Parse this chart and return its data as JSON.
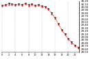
{
  "pressure_values": [
    30.05,
    30.08,
    30.12,
    30.1,
    30.08,
    30.11,
    30.09,
    30.13,
    30.07,
    30.1,
    30.06,
    30.09,
    30.04,
    30.02,
    29.95,
    29.8,
    29.65,
    29.45,
    29.25,
    29.1,
    28.95,
    28.82,
    28.72,
    28.65
  ],
  "red_values": [
    30.03,
    30.06,
    30.09,
    30.07,
    30.05,
    30.08,
    30.06,
    30.1,
    30.04,
    30.07,
    30.03,
    30.06,
    30.01,
    29.99,
    29.92,
    29.77,
    29.62,
    29.42,
    29.22,
    29.07,
    28.92,
    28.79,
    28.69,
    28.62
  ],
  "hours": [
    0,
    1,
    2,
    3,
    4,
    5,
    6,
    7,
    8,
    9,
    10,
    11,
    12,
    13,
    14,
    15,
    16,
    17,
    18,
    19,
    20,
    21,
    22,
    23
  ],
  "line_color": "#000000",
  "dot_color": "#ff0000",
  "grid_color": "#888888",
  "bg_color": "#ffffff",
  "ymin": 28.5,
  "ymax": 30.2,
  "ytick_interval": 0.1,
  "ylabel_fontsize": 2.8,
  "xlabel_fontsize": 2.5,
  "marker_size": 1.5,
  "linewidth": 0.5
}
